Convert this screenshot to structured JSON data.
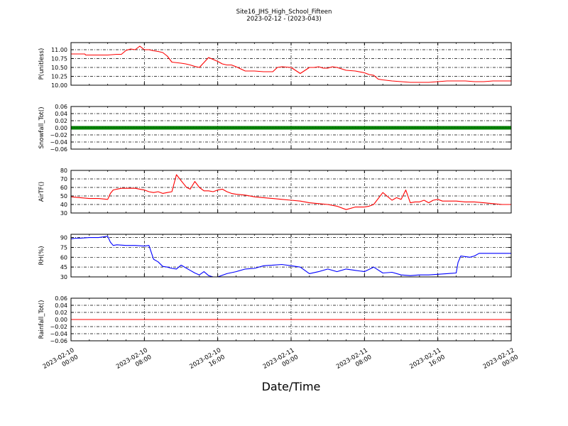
{
  "figure": {
    "title_line1": "Site16_JHS_High_School_Fifteen",
    "title_line2": "2023-02-12 - (2023-043)",
    "xlabel": "Date/Time",
    "x_tick_labels": [
      [
        "2023-02-10",
        "00:00"
      ],
      [
        "2023-02-10",
        "08:00"
      ],
      [
        "2023-02-10",
        "16:00"
      ],
      [
        "2023-02-11",
        "00:00"
      ],
      [
        "2023-02-11",
        "08:00"
      ],
      [
        "2023-02-11",
        "16:00"
      ],
      [
        "2023-02-12",
        "00:00"
      ]
    ]
  },
  "chart_data": [
    {
      "type": "line",
      "ylabel": "P(unitless)",
      "ylim": [
        10.0,
        11.2
      ],
      "yticks": [
        "10.00",
        "10.25",
        "10.50",
        "10.75",
        "11.00"
      ],
      "grid": true,
      "series": [
        {
          "color": "#ff0000",
          "x_hours": [
            0,
            1.5,
            1.6,
            4,
            5,
            5.5,
            6,
            6.5,
            7,
            7.5,
            8,
            8.5,
            9,
            9.5,
            10,
            10.5,
            11,
            12,
            12.5,
            13,
            13.5,
            14,
            15,
            16,
            16.5,
            17,
            17.5,
            18,
            19,
            20,
            21,
            22,
            22.5,
            23,
            24,
            25,
            26,
            26.5,
            27,
            27.5,
            28,
            28.5,
            29,
            30,
            31,
            32,
            32.5,
            33,
            33.5,
            34,
            35,
            36,
            37,
            37.5,
            38,
            38.5,
            39,
            40,
            41,
            42,
            43,
            44,
            45,
            46,
            47,
            48
          ],
          "y": [
            10.88,
            10.88,
            10.85,
            10.85,
            10.87,
            10.87,
            10.98,
            11.02,
            11.0,
            11.1,
            11.0,
            11.0,
            10.97,
            10.95,
            10.92,
            10.82,
            10.65,
            10.62,
            10.6,
            10.57,
            10.53,
            10.5,
            10.78,
            10.67,
            10.6,
            10.57,
            10.57,
            10.52,
            10.4,
            10.4,
            10.38,
            10.38,
            10.5,
            10.52,
            10.5,
            10.33,
            10.5,
            10.5,
            10.52,
            10.48,
            10.48,
            10.52,
            10.5,
            10.42,
            10.4,
            10.35,
            10.3,
            10.28,
            10.17,
            10.15,
            10.12,
            10.1,
            10.08,
            10.08,
            10.08,
            10.08,
            10.08,
            10.1,
            10.12,
            10.12,
            10.12,
            10.1,
            10.1,
            10.12,
            10.12,
            10.12
          ]
        }
      ]
    },
    {
      "type": "line",
      "ylabel": "Snowfall_Tot()",
      "ylim": [
        -0.06,
        0.06
      ],
      "yticks": [
        "−0.06",
        "−0.04",
        "−0.02",
        "0.00",
        "0.02",
        "0.04",
        "0.06"
      ],
      "grid": true,
      "series": [
        {
          "color": "#008000",
          "marker": true,
          "x_hours": [
            0,
            48
          ],
          "y": [
            0.0,
            0.0
          ]
        }
      ]
    },
    {
      "type": "line",
      "ylabel": "AirTF()",
      "ylim": [
        30,
        80
      ],
      "yticks": [
        "30",
        "40",
        "50",
        "60",
        "70",
        "80"
      ],
      "grid": true,
      "series": [
        {
          "color": "#ff0000",
          "x_hours": [
            0,
            1,
            2,
            3,
            4,
            4.3,
            4.6,
            5,
            5.5,
            6,
            6.5,
            7,
            7.5,
            8,
            8.5,
            9,
            9.5,
            10,
            10.5,
            11,
            11.5,
            12,
            12.3,
            12.6,
            13,
            13.5,
            14,
            14.5,
            15,
            15.5,
            16,
            16.5,
            17,
            17.5,
            18,
            19,
            20,
            21,
            22,
            23,
            24,
            25,
            26,
            27,
            28,
            29,
            30,
            31,
            32,
            32.5,
            33,
            34,
            35,
            35.5,
            36,
            36.5,
            37,
            37.5,
            38,
            38.5,
            39,
            39.5,
            40,
            40.5,
            41,
            41.5,
            42,
            43,
            44,
            45,
            46,
            47,
            48
          ],
          "y": [
            49,
            48,
            47,
            47,
            46,
            53,
            57,
            58,
            59,
            59,
            59,
            59,
            58,
            57,
            55,
            54,
            55,
            53,
            54,
            55,
            75,
            68,
            64,
            60,
            58,
            67,
            60,
            56,
            56,
            55,
            57,
            58,
            55,
            53,
            52,
            51,
            49,
            48,
            47,
            46,
            45,
            44,
            42,
            41,
            40,
            38,
            34,
            37,
            37,
            38,
            40,
            54,
            45,
            48,
            46,
            57,
            42,
            43,
            43,
            45,
            42,
            45,
            46,
            44,
            44,
            44,
            44,
            43,
            43,
            42,
            41,
            40,
            40
          ]
        }
      ]
    },
    {
      "type": "line",
      "ylabel": "RH(%)",
      "ylim": [
        30,
        95
      ],
      "yticks": [
        "30",
        "45",
        "60",
        "75",
        "90"
      ],
      "grid": true,
      "series": [
        {
          "color": "#0000ff",
          "x_hours": [
            0,
            0.5,
            1,
            2,
            3,
            4,
            4.3,
            4.6,
            5,
            6,
            7,
            8,
            8.5,
            9,
            9.5,
            10,
            10.5,
            11,
            11.5,
            12,
            12.5,
            13,
            13.5,
            14,
            14.5,
            15,
            15.5,
            16,
            17,
            18,
            19,
            20,
            21,
            22,
            23,
            24,
            25,
            26,
            27,
            28,
            29,
            30,
            31,
            32,
            33,
            34,
            35,
            36,
            37,
            38,
            39,
            40,
            41,
            42,
            42.2,
            42.5,
            43,
            43.5,
            44,
            44.5,
            45,
            46,
            47,
            48
          ],
          "y": [
            88,
            89,
            89,
            90,
            90,
            92,
            83,
            78,
            79,
            78,
            78,
            77,
            78,
            57,
            53,
            46,
            45,
            43,
            42,
            48,
            44,
            40,
            36,
            33,
            38,
            32,
            30,
            30,
            35,
            38,
            42,
            43,
            47,
            48,
            49,
            47,
            45,
            35,
            38,
            42,
            38,
            42,
            40,
            38,
            45,
            36,
            37,
            33,
            32,
            33,
            33,
            34,
            35,
            36,
            52,
            62,
            61,
            60,
            62,
            66,
            66,
            66,
            66,
            66
          ]
        }
      ]
    },
    {
      "type": "line",
      "ylabel": "Rainfall_Tot()",
      "ylim": [
        -0.06,
        0.06
      ],
      "yticks": [
        "−0.06",
        "−0.04",
        "−0.02",
        "0.00",
        "0.02",
        "0.04",
        "0.06"
      ],
      "grid": true,
      "series": [
        {
          "color": "#ff0000",
          "x_hours": [
            0,
            48
          ],
          "y": [
            0.0,
            0.0
          ]
        }
      ]
    }
  ]
}
